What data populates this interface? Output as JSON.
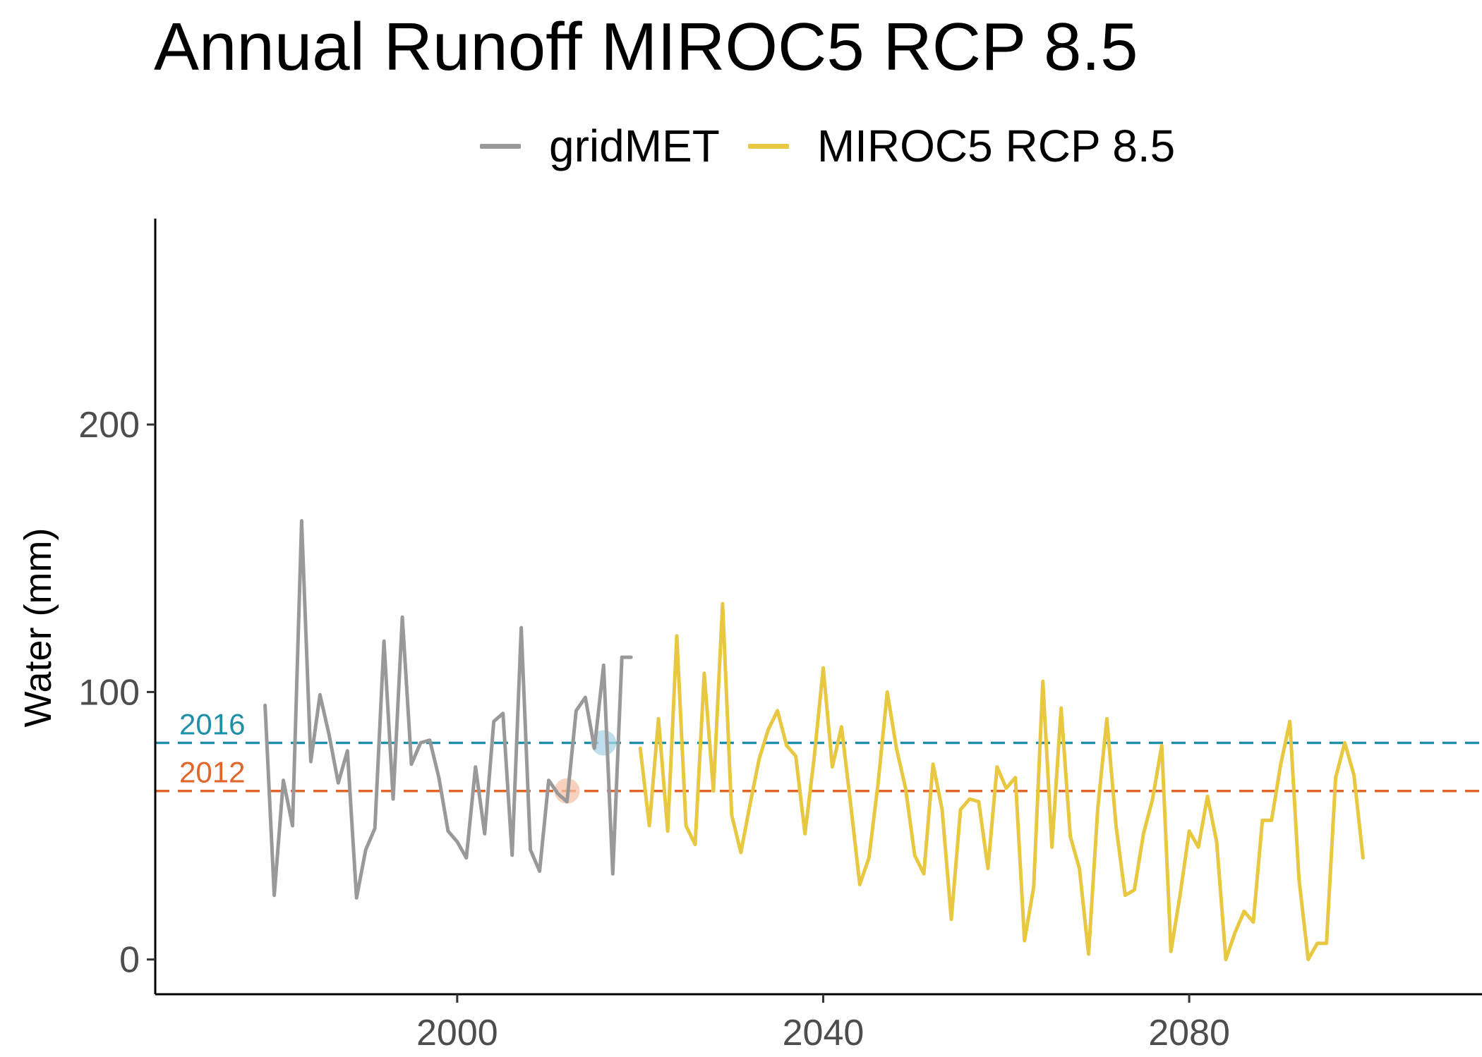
{
  "title": "Annual Runoff MIROC5 RCP 8.5",
  "legend": {
    "position": "top",
    "items": [
      {
        "label": "gridMET",
        "color": "#999999"
      },
      {
        "label": "MIROC5 RCP 8.5",
        "color": "#E8C840"
      }
    ]
  },
  "chart_data": {
    "type": "line",
    "title": "Annual Runoff MIROC5 RCP 8.5",
    "xlabel": "",
    "ylabel": "Water (mm)",
    "xlim": [
      1967,
      2112
    ],
    "ylim": [
      -13,
      277
    ],
    "x_ticks": [
      2000,
      2040,
      2080
    ],
    "y_ticks": [
      0,
      100,
      200
    ],
    "grid": false,
    "legend_position": "top",
    "series": [
      {
        "name": "gridMET",
        "color": "#999999",
        "x": [
          1979,
          1980,
          1981,
          1982,
          1983,
          1984,
          1985,
          1986,
          1987,
          1988,
          1989,
          1990,
          1991,
          1992,
          1993,
          1994,
          1995,
          1996,
          1997,
          1998,
          1999,
          2000,
          2001,
          2002,
          2003,
          2004,
          2005,
          2006,
          2007,
          2008,
          2009,
          2010,
          2011,
          2012,
          2013,
          2014,
          2015,
          2016,
          2017,
          2018,
          2019
        ],
        "y": [
          95,
          24,
          67,
          50,
          164,
          74,
          99,
          84,
          66,
          78,
          23,
          41,
          49,
          119,
          60,
          128,
          73,
          81,
          82,
          68,
          48,
          44,
          38,
          72,
          47,
          89,
          92,
          39,
          124,
          41,
          33,
          67,
          62,
          59,
          93,
          98,
          79,
          110,
          32,
          113,
          113
        ]
      },
      {
        "name": "MIROC5 RCP 8.5",
        "color": "#E8C840",
        "x": [
          2020,
          2021,
          2022,
          2023,
          2024,
          2025,
          2026,
          2027,
          2028,
          2029,
          2030,
          2031,
          2032,
          2033,
          2034,
          2035,
          2036,
          2037,
          2038,
          2039,
          2040,
          2041,
          2042,
          2043,
          2044,
          2045,
          2046,
          2047,
          2048,
          2049,
          2050,
          2051,
          2052,
          2053,
          2054,
          2055,
          2056,
          2057,
          2058,
          2059,
          2060,
          2061,
          2062,
          2063,
          2064,
          2065,
          2066,
          2067,
          2068,
          2069,
          2070,
          2071,
          2072,
          2073,
          2074,
          2075,
          2076,
          2077,
          2078,
          2079,
          2080,
          2081,
          2082,
          2083,
          2084,
          2085,
          2086,
          2087,
          2088,
          2089,
          2090,
          2091,
          2092,
          2093,
          2094,
          2095,
          2096,
          2097,
          2098,
          2099
        ],
        "y": [
          79,
          50,
          90,
          48,
          121,
          50,
          43,
          107,
          63,
          133,
          54,
          40,
          58,
          75,
          86,
          93,
          80,
          76,
          47,
          75,
          109,
          72,
          87,
          58,
          28,
          38,
          66,
          100,
          79,
          64,
          39,
          32,
          73,
          56,
          15,
          56,
          60,
          59,
          34,
          72,
          64,
          68,
          7,
          27,
          104,
          42,
          94,
          46,
          34,
          2,
          56,
          90,
          50,
          24,
          26,
          47,
          60,
          80,
          3,
          24,
          48,
          42,
          61,
          44,
          0,
          10,
          18,
          14,
          52,
          52,
          73,
          89,
          30,
          0,
          6,
          6,
          68,
          81,
          69,
          38
        ]
      }
    ],
    "reference_lines": [
      {
        "label": "2016",
        "y": 81,
        "color": "#2090A8"
      },
      {
        "label": "2012",
        "y": 63,
        "color": "#E0662A"
      }
    ],
    "highlight_points": [
      {
        "x": 2016,
        "y": 81,
        "color": "#A8D4E4"
      },
      {
        "x": 2012,
        "y": 63,
        "color": "#F4C2A8"
      }
    ]
  }
}
